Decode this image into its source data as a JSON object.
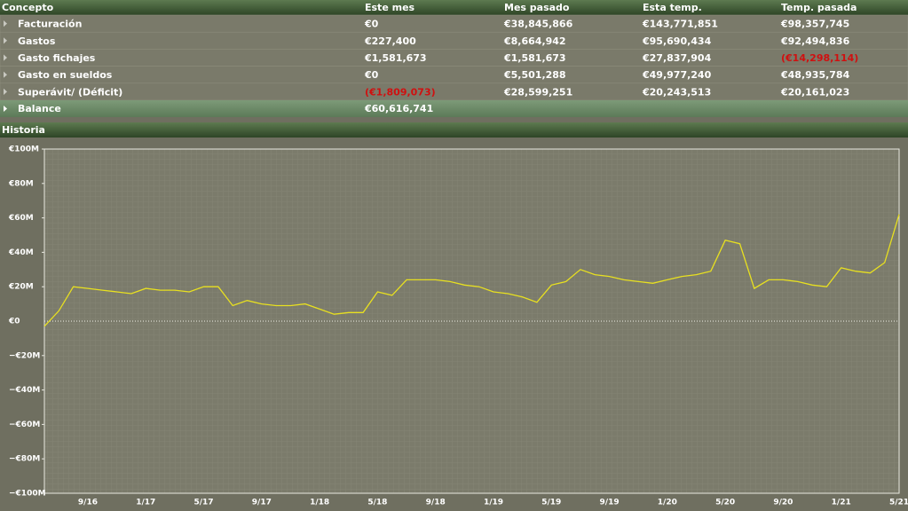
{
  "table": {
    "columns": [
      "Concepto",
      "Este mes",
      "Mes pasado",
      "Esta temp.",
      "Temp. pasada"
    ],
    "rows": [
      [
        "Facturación",
        "€0",
        "€38,845,866",
        "€143,771,851",
        "€98,357,745"
      ],
      [
        "Gastos",
        "€227,400",
        "€8,664,942",
        "€95,690,434",
        "€92,494,836"
      ],
      [
        "Gasto fichajes",
        "€1,581,673",
        "€1,581,673",
        "€27,837,904",
        "(€14,298,114)"
      ],
      [
        "Gasto en sueldos",
        "€0",
        "€5,501,288",
        "€49,977,240",
        "€48,935,784"
      ],
      [
        "Superávit/ (Déficit)",
        "(€1,809,073)",
        "€28,599,251",
        "€20,243,513",
        "€20,161,023"
      ]
    ],
    "balance": [
      "Balance",
      "€60,616,741"
    ]
  },
  "section_title": "Historia",
  "chart_data": {
    "type": "line",
    "categories": [
      null,
      null,
      null,
      "9/16",
      null,
      null,
      null,
      "1/17",
      null,
      null,
      null,
      "5/17",
      null,
      null,
      null,
      "9/17",
      null,
      null,
      null,
      "1/18",
      null,
      null,
      null,
      "5/18",
      null,
      null,
      null,
      "9/18",
      null,
      null,
      null,
      "1/19",
      null,
      null,
      null,
      "5/19",
      null,
      null,
      null,
      "9/19",
      null,
      null,
      null,
      "1/20",
      null,
      null,
      null,
      "5/20",
      null,
      null,
      null,
      "9/20",
      null,
      null,
      null,
      "1/21",
      null,
      null,
      null,
      "5/21"
    ],
    "values": [
      -3,
      6,
      20,
      19,
      18,
      17,
      16,
      19,
      18,
      18,
      17,
      20,
      20,
      9,
      12,
      10,
      9,
      9,
      10,
      7,
      4,
      5,
      5,
      17,
      15,
      24,
      24,
      24,
      23,
      21,
      20,
      17,
      16,
      14,
      11,
      21,
      23,
      30,
      27,
      26,
      24,
      23,
      22,
      24,
      26,
      27,
      29,
      47,
      45,
      19,
      24,
      24,
      23,
      21,
      20,
      31,
      29,
      28,
      34,
      62
    ],
    "color": "#e8e020",
    "ylim": [
      -100,
      100
    ],
    "yticks": [
      {
        "value": -100,
        "label": "−€100M"
      },
      {
        "value": -80,
        "label": "−€80M"
      },
      {
        "value": -60,
        "label": "−€60M"
      },
      {
        "value": -40,
        "label": "−€40M"
      },
      {
        "value": -20,
        "label": "−€20M"
      },
      {
        "value": 0,
        "label": "€0"
      },
      {
        "value": 20,
        "label": "€20M"
      },
      {
        "value": 40,
        "label": "€40M"
      },
      {
        "value": 60,
        "label": "€60M"
      },
      {
        "value": 80,
        "label": "€80M"
      },
      {
        "value": 100,
        "label": "€100M"
      }
    ]
  }
}
